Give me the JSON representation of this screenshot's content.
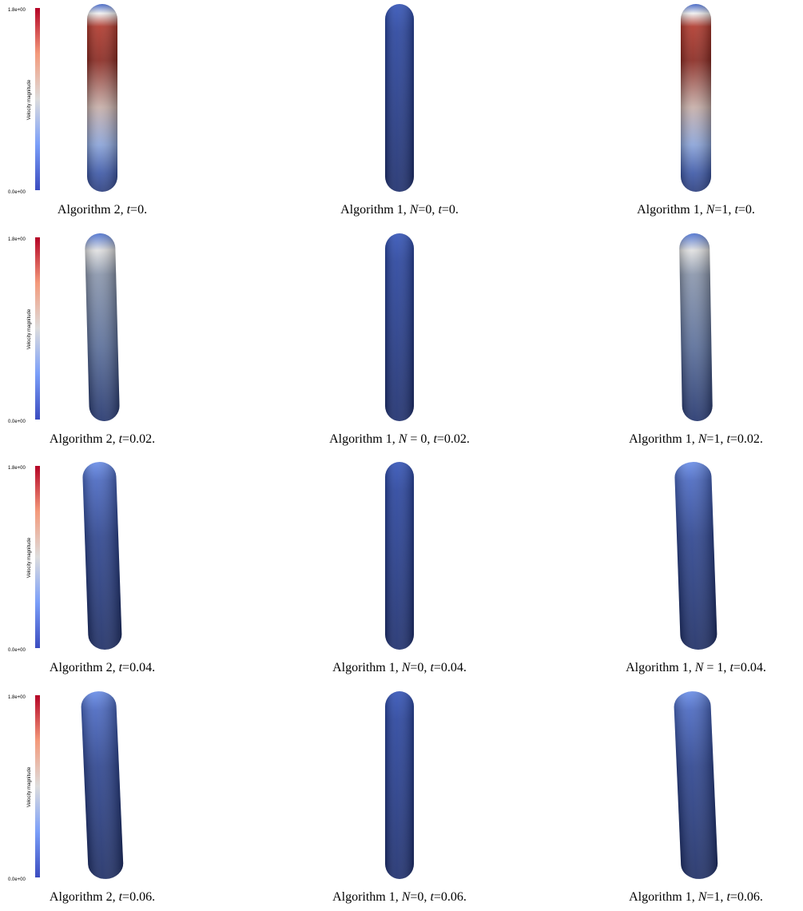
{
  "rows": [
    {
      "colorbar": {
        "max_label": "1.8e+00",
        "min_label": "0.0e+00",
        "title": "Velocity magnitude"
      },
      "panels": [
        {
          "caption": "Algorithm 2, t=0."
        },
        {
          "caption": "Algorithm 1, N=0, t=0."
        },
        {
          "caption": "Algorithm 1, N=1, t=0."
        }
      ]
    },
    {
      "colorbar": {
        "max_label": "1.8e+00",
        "min_label": "0.0e+00",
        "title": "Velocity magnitude"
      },
      "panels": [
        {
          "caption": "Algorithm 2, t=0.02."
        },
        {
          "caption": "Algorithm 1, N = 0, t=0.02."
        },
        {
          "caption": "Algorithm 1, N=1, t=0.02."
        }
      ]
    },
    {
      "colorbar": {
        "max_label": "1.8e+00",
        "min_label": "0.0e+00",
        "title": "Velocity magnitude"
      },
      "panels": [
        {
          "caption": "Algorithm 2, t=0.04."
        },
        {
          "caption": "Algorithm 1, N=0, t=0.04."
        },
        {
          "caption": "Algorithm 1, N = 1, t=0.04."
        }
      ]
    },
    {
      "colorbar": {
        "max_label": "1.8e+00",
        "min_label": "0.0e+00",
        "title": "Velocity magnitude"
      },
      "panels": [
        {
          "caption": "Algorithm 2, t=0.06."
        },
        {
          "caption": "Algorithm 1, N=0, t=0.06."
        },
        {
          "caption": "Algorithm 1, N=1, t=0.06."
        }
      ]
    }
  ]
}
